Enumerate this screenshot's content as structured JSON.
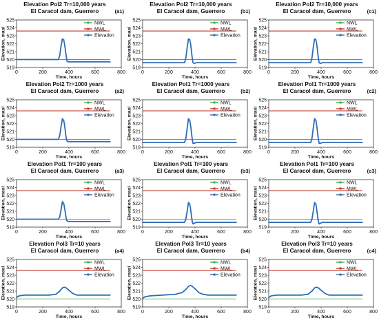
{
  "colors": {
    "nwl": "#3cb34a",
    "mwl": "#c0392b",
    "elevation": "#2e6db5",
    "axis": "#333333",
    "plot_bg": "#ffffff"
  },
  "chart_data": [
    {
      "id": "a1",
      "type": "line",
      "title": "Elevation Pol2 Tr=10,000 years",
      "subtitle": "El Caracol dam, Guerrero",
      "panel_label": "(a1)",
      "xlabel": "Time, hours",
      "ylabel": "Elevation, masl",
      "xlim": [
        0,
        800
      ],
      "ylim": [
        519,
        525
      ],
      "x_ticks": [
        0,
        200,
        400,
        600,
        800
      ],
      "y_ticks": [
        519,
        520,
        521,
        522,
        523,
        524,
        525
      ],
      "grid": false,
      "legend": "top-right",
      "series": [
        {
          "name": "NWL",
          "x": [
            0,
            715
          ],
          "y": [
            520.0,
            520.0
          ]
        },
        {
          "name": "MWL",
          "x": [
            0,
            715
          ],
          "y": [
            523.6,
            523.6
          ]
        },
        {
          "name": "Elevation",
          "x": [
            0,
            320,
            330,
            340,
            350,
            360,
            365,
            370,
            375,
            380,
            385,
            395,
            410,
            500,
            600,
            715
          ],
          "y": [
            520.0,
            520.0,
            520.5,
            521.7,
            522.6,
            522.5,
            522.1,
            521.6,
            520.9,
            520.4,
            519.8,
            519.7,
            519.7,
            519.7,
            519.7,
            519.7
          ]
        }
      ]
    },
    {
      "id": "b1",
      "type": "line",
      "title": "Elevation Pol2 Tr=10,000 years",
      "subtitle": "El Caracol dam, Guerrero",
      "panel_label": "(b1)",
      "xlabel": "Time, hours",
      "ylabel": "Elevation, masl",
      "xlim": [
        0,
        800
      ],
      "ylim": [
        519,
        525
      ],
      "x_ticks": [
        0,
        200,
        400,
        600,
        800
      ],
      "y_ticks": [
        519,
        520,
        521,
        522,
        523,
        524,
        525
      ],
      "grid": false,
      "legend": "top-right",
      "series": [
        {
          "name": "NWL",
          "x": [
            0,
            715
          ],
          "y": [
            520.0,
            520.0
          ]
        },
        {
          "name": "MWL",
          "x": [
            0,
            715
          ],
          "y": [
            523.6,
            523.6
          ]
        },
        {
          "name": "Elevation",
          "x": [
            0,
            320,
            330,
            340,
            350,
            360,
            365,
            370,
            375,
            380,
            385,
            395,
            410,
            500,
            600,
            715
          ],
          "y": [
            519.6,
            519.6,
            520.2,
            521.5,
            522.6,
            522.5,
            522.1,
            521.5,
            520.7,
            520.0,
            519.6,
            519.5,
            519.6,
            519.6,
            519.6,
            519.6
          ]
        }
      ]
    },
    {
      "id": "c1",
      "type": "line",
      "title": "Elevation Pol2 Tr=10,000 years",
      "subtitle": "El Caracol dam, Guerrero",
      "panel_label": "(c1)",
      "xlabel": "Time, hours",
      "ylabel": "Elevation, masl",
      "xlim": [
        0,
        800
      ],
      "ylim": [
        519,
        525
      ],
      "x_ticks": [
        0,
        200,
        400,
        600,
        800
      ],
      "y_ticks": [
        519,
        520,
        521,
        522,
        523,
        524,
        525
      ],
      "grid": false,
      "legend": "top-right",
      "series": [
        {
          "name": "NWL",
          "x": [
            0,
            715
          ],
          "y": [
            520.0,
            520.0
          ]
        },
        {
          "name": "MWL",
          "x": [
            0,
            715
          ],
          "y": [
            523.6,
            523.6
          ]
        },
        {
          "name": "Elevation",
          "x": [
            0,
            320,
            330,
            340,
            350,
            360,
            365,
            370,
            375,
            380,
            385,
            395,
            410,
            500,
            600,
            715
          ],
          "y": [
            519.6,
            519.6,
            520.2,
            521.5,
            522.6,
            522.5,
            522.1,
            521.5,
            520.7,
            520.0,
            519.6,
            519.5,
            519.6,
            519.6,
            519.6,
            519.6
          ]
        }
      ]
    },
    {
      "id": "a2",
      "type": "line",
      "title": "Elevation Pol2 Tr=1000 years",
      "subtitle": "El Caracol dam, Guerrero",
      "panel_label": "(a2)",
      "xlabel": "Time, hours",
      "ylabel": "Elevation, masl",
      "xlim": [
        0,
        800
      ],
      "ylim": [
        519,
        525
      ],
      "x_ticks": [
        0,
        200,
        400,
        600,
        800
      ],
      "y_ticks": [
        519,
        520,
        521,
        522,
        523,
        524,
        525
      ],
      "grid": false,
      "legend": "top-right",
      "series": [
        {
          "name": "NWL",
          "x": [
            0,
            715
          ],
          "y": [
            520.0,
            520.0
          ]
        },
        {
          "name": "MWL",
          "x": [
            0,
            715
          ],
          "y": [
            523.6,
            523.6
          ]
        },
        {
          "name": "Elevation",
          "x": [
            0,
            320,
            330,
            340,
            350,
            360,
            365,
            370,
            375,
            380,
            385,
            395,
            410,
            500,
            600,
            715
          ],
          "y": [
            520.0,
            520.0,
            520.5,
            521.6,
            522.6,
            522.4,
            522.0,
            521.4,
            520.6,
            520.1,
            519.8,
            519.7,
            519.7,
            519.7,
            519.7,
            519.7
          ]
        }
      ]
    },
    {
      "id": "b2",
      "type": "line",
      "title": "Elevation Pol1 Tr=1000 years",
      "subtitle": "El Caracol dam, Guerrero",
      "panel_label": "(b2)",
      "xlabel": "Time, hours",
      "ylabel": "Elevation, masl",
      "xlim": [
        0,
        800
      ],
      "ylim": [
        519,
        525
      ],
      "x_ticks": [
        0,
        200,
        400,
        600,
        800
      ],
      "y_ticks": [
        519,
        520,
        521,
        522,
        523,
        524,
        525
      ],
      "grid": false,
      "legend": "top-right",
      "series": [
        {
          "name": "NWL",
          "x": [
            0,
            715
          ],
          "y": [
            520.0,
            520.0
          ]
        },
        {
          "name": "MWL",
          "x": [
            0,
            715
          ],
          "y": [
            523.6,
            523.6
          ]
        },
        {
          "name": "Elevation",
          "x": [
            0,
            320,
            330,
            340,
            350,
            360,
            365,
            370,
            375,
            380,
            385,
            395,
            410,
            500,
            600,
            715
          ],
          "y": [
            519.6,
            519.6,
            520.1,
            521.4,
            522.6,
            522.4,
            521.9,
            521.3,
            520.5,
            519.9,
            519.5,
            519.5,
            519.6,
            519.6,
            519.6,
            519.6
          ]
        }
      ]
    },
    {
      "id": "c2",
      "type": "line",
      "title": "Elevation Pol1 Tr=1000 years",
      "subtitle": "El Caracol dam, Guerrero",
      "panel_label": "(c2)",
      "xlabel": "Time, hours",
      "ylabel": "Elevation, masl",
      "xlim": [
        0,
        800
      ],
      "ylim": [
        519,
        525
      ],
      "x_ticks": [
        0,
        200,
        400,
        600,
        800
      ],
      "y_ticks": [
        519,
        520,
        521,
        522,
        523,
        524,
        525
      ],
      "grid": false,
      "legend": "top-right",
      "series": [
        {
          "name": "NWL",
          "x": [
            0,
            715
          ],
          "y": [
            520.0,
            520.0
          ]
        },
        {
          "name": "MWL",
          "x": [
            0,
            715
          ],
          "y": [
            523.6,
            523.6
          ]
        },
        {
          "name": "Elevation",
          "x": [
            0,
            320,
            330,
            340,
            350,
            360,
            365,
            370,
            375,
            380,
            385,
            395,
            410,
            500,
            600,
            715
          ],
          "y": [
            519.6,
            519.6,
            520.1,
            521.4,
            522.6,
            522.4,
            521.9,
            521.3,
            520.5,
            519.9,
            519.5,
            519.5,
            519.6,
            519.6,
            519.6,
            519.6
          ]
        }
      ]
    },
    {
      "id": "a3",
      "type": "line",
      "title": "Elevation Pol1 Tr=100 years",
      "subtitle": "El Caracol dam, Guerrero",
      "panel_label": "(a3)",
      "xlabel": "Time, hours",
      "ylabel": "Elevation, masl",
      "xlim": [
        0,
        800
      ],
      "ylim": [
        519,
        525
      ],
      "x_ticks": [
        0,
        200,
        400,
        600,
        800
      ],
      "y_ticks": [
        519,
        520,
        521,
        522,
        523,
        524,
        525
      ],
      "grid": false,
      "legend": "top-right",
      "series": [
        {
          "name": "NWL",
          "x": [
            0,
            715
          ],
          "y": [
            520.0,
            520.0
          ]
        },
        {
          "name": "MWL",
          "x": [
            0,
            715
          ],
          "y": [
            523.6,
            523.6
          ]
        },
        {
          "name": "Elevation",
          "x": [
            0,
            320,
            330,
            340,
            350,
            360,
            365,
            370,
            375,
            380,
            385,
            395,
            410,
            500,
            600,
            715
          ],
          "y": [
            520.0,
            520.0,
            520.3,
            521.2,
            522.2,
            522.0,
            521.6,
            521.1,
            520.5,
            520.0,
            519.8,
            519.7,
            519.7,
            519.7,
            519.7,
            519.7
          ]
        }
      ]
    },
    {
      "id": "b3",
      "type": "line",
      "title": "Elevation Pol1 Tr=100 years",
      "subtitle": "El Caracol dam, Guerrero",
      "panel_label": "(b3)",
      "xlabel": "Time, hours",
      "ylabel": "Elevation, masl",
      "xlim": [
        0,
        800
      ],
      "ylim": [
        519,
        525
      ],
      "x_ticks": [
        0,
        200,
        400,
        600,
        800
      ],
      "y_ticks": [
        519,
        520,
        521,
        522,
        523,
        524,
        525
      ],
      "grid": false,
      "legend": "top-right",
      "series": [
        {
          "name": "NWL",
          "x": [
            0,
            715
          ],
          "y": [
            520.0,
            520.0
          ]
        },
        {
          "name": "MWL",
          "x": [
            0,
            715
          ],
          "y": [
            523.6,
            523.6
          ]
        },
        {
          "name": "Elevation",
          "x": [
            0,
            320,
            330,
            340,
            350,
            360,
            365,
            370,
            375,
            380,
            385,
            395,
            410,
            500,
            600,
            715
          ],
          "y": [
            519.6,
            519.6,
            520.0,
            521.0,
            522.1,
            521.9,
            521.4,
            520.8,
            520.1,
            519.6,
            519.4,
            519.5,
            519.6,
            519.6,
            519.6,
            519.6
          ]
        }
      ]
    },
    {
      "id": "c3",
      "type": "line",
      "title": "Elevation Pol1 Tr=100 years",
      "subtitle": "El Caracol dam, Guerrero",
      "panel_label": "(c3)",
      "xlabel": "Time, hours",
      "ylabel": "Elevation, masl",
      "xlim": [
        0,
        800
      ],
      "ylim": [
        519,
        525
      ],
      "x_ticks": [
        0,
        200,
        400,
        600,
        800
      ],
      "y_ticks": [
        519,
        520,
        521,
        522,
        523,
        524,
        525
      ],
      "grid": false,
      "legend": "top-right",
      "series": [
        {
          "name": "NWL",
          "x": [
            0,
            715
          ],
          "y": [
            520.0,
            520.0
          ]
        },
        {
          "name": "MWL",
          "x": [
            0,
            715
          ],
          "y": [
            523.6,
            523.6
          ]
        },
        {
          "name": "Elevation",
          "x": [
            0,
            320,
            330,
            340,
            350,
            360,
            365,
            370,
            375,
            380,
            385,
            395,
            410,
            500,
            600,
            715
          ],
          "y": [
            519.6,
            519.6,
            520.0,
            521.0,
            522.1,
            521.9,
            521.4,
            520.8,
            520.1,
            519.6,
            519.4,
            519.5,
            519.6,
            519.6,
            519.6,
            519.6
          ]
        }
      ]
    },
    {
      "id": "a4",
      "type": "line",
      "title": "Elevation Pol3 Tr=10 years",
      "subtitle": "El Caracol dam, Guerrero",
      "panel_label": "(a4)",
      "xlabel": "Time, hours",
      "ylabel": "Elevation, masl",
      "xlim": [
        0,
        800
      ],
      "ylim": [
        519,
        525
      ],
      "x_ticks": [
        0,
        200,
        400,
        600,
        800
      ],
      "y_ticks": [
        519,
        520,
        521,
        522,
        523,
        524,
        525
      ],
      "grid": false,
      "legend": "top-right",
      "series": [
        {
          "name": "NWL",
          "x": [
            0,
            715
          ],
          "y": [
            520.0,
            520.0
          ]
        },
        {
          "name": "MWL",
          "x": [
            0,
            715
          ],
          "y": [
            523.6,
            523.6
          ]
        },
        {
          "name": "Elevation",
          "x": [
            0,
            20,
            60,
            150,
            250,
            300,
            330,
            350,
            365,
            380,
            400,
            430,
            460,
            500,
            600,
            715
          ],
          "y": [
            520.2,
            520.4,
            520.5,
            520.5,
            520.5,
            520.6,
            521.0,
            521.4,
            521.5,
            521.4,
            521.1,
            520.7,
            520.5,
            520.5,
            520.5,
            520.5
          ]
        }
      ]
    },
    {
      "id": "b4",
      "type": "line",
      "title": "Elevation Pol3 Tr=10 years",
      "subtitle": "El Caracol dam, Guerrero",
      "panel_label": "(b4)",
      "xlabel": "Time, hours",
      "ylabel": "Elevation, masl",
      "xlim": [
        0,
        800
      ],
      "ylim": [
        519,
        525
      ],
      "x_ticks": [
        0,
        200,
        400,
        600,
        800
      ],
      "y_ticks": [
        519,
        520,
        521,
        522,
        523,
        524,
        525
      ],
      "grid": false,
      "legend": "top-right",
      "series": [
        {
          "name": "NWL",
          "x": [
            0,
            715
          ],
          "y": [
            520.0,
            520.0
          ]
        },
        {
          "name": "MWL",
          "x": [
            0,
            715
          ],
          "y": [
            523.6,
            523.6
          ]
        },
        {
          "name": "Elevation",
          "x": [
            0,
            20,
            60,
            150,
            250,
            300,
            330,
            350,
            365,
            380,
            400,
            430,
            460,
            500,
            600,
            715
          ],
          "y": [
            520.1,
            520.3,
            520.4,
            520.5,
            520.6,
            520.8,
            521.2,
            521.6,
            521.7,
            521.6,
            521.3,
            520.8,
            520.6,
            520.5,
            520.5,
            520.5
          ]
        }
      ]
    },
    {
      "id": "c4",
      "type": "line",
      "title": "Elevation Pol3 Tr=10 years",
      "subtitle": "El Caracol dam, Guerrero",
      "panel_label": "(c4)",
      "xlabel": "Time, hours",
      "ylabel": "Elevation, masl",
      "xlim": [
        0,
        800
      ],
      "ylim": [
        519,
        525
      ],
      "x_ticks": [
        0,
        200,
        400,
        600,
        800
      ],
      "y_ticks": [
        519,
        520,
        521,
        522,
        523,
        524,
        525
      ],
      "grid": false,
      "legend": "top-right",
      "series": [
        {
          "name": "NWL",
          "x": [
            0,
            715
          ],
          "y": [
            520.0,
            520.0
          ]
        },
        {
          "name": "MWL",
          "x": [
            0,
            715
          ],
          "y": [
            523.6,
            523.6
          ]
        },
        {
          "name": "Elevation",
          "x": [
            0,
            20,
            60,
            150,
            250,
            300,
            330,
            350,
            365,
            380,
            400,
            430,
            460,
            500,
            600,
            715
          ],
          "y": [
            520.2,
            520.4,
            520.5,
            520.5,
            520.5,
            520.6,
            521.0,
            521.4,
            521.5,
            521.4,
            521.1,
            520.7,
            520.5,
            520.5,
            520.5,
            520.5
          ]
        }
      ]
    }
  ]
}
